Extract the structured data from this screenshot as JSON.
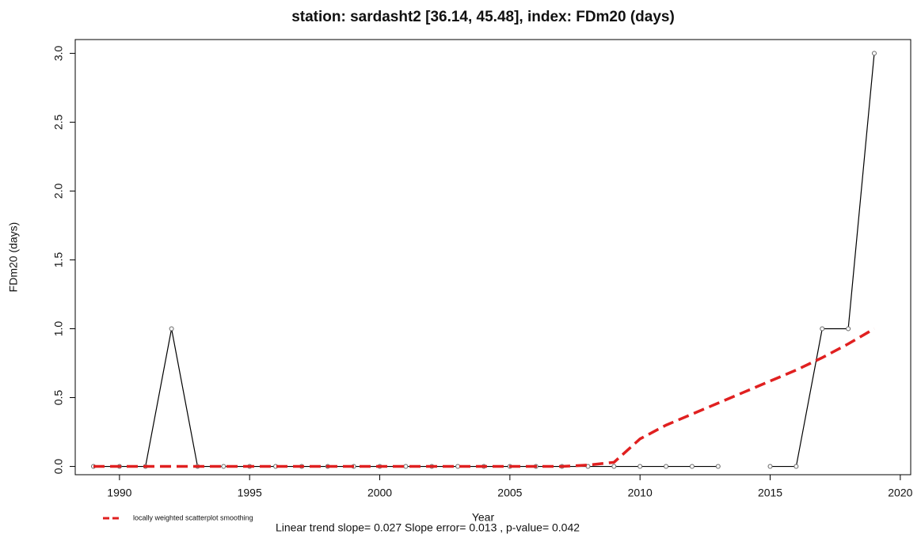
{
  "chart_data": {
    "type": "line",
    "title": "station: sardasht2 [36.14, 45.48], index: FDm20 (days)",
    "x_label": "Year",
    "y_label": "FDm20 (days)",
    "annotation": "Linear trend slope= 0.027    Slope error= 0.013 ,   p-value= 0.042",
    "x": [
      1989,
      1990,
      1991,
      1992,
      1993,
      1994,
      1995,
      1996,
      1997,
      1998,
      1999,
      2000,
      2001,
      2002,
      2003,
      2004,
      2005,
      2006,
      2007,
      2008,
      2009,
      2010,
      2011,
      2012,
      2013,
      2014,
      2015,
      2016,
      2017,
      2018,
      2019
    ],
    "series": [
      {
        "color": "#000000",
        "values": [
          0,
          0,
          0,
          1,
          0,
          0,
          0,
          0,
          0,
          0,
          0,
          0,
          0,
          0,
          0,
          0,
          0,
          0,
          0,
          0,
          0,
          0,
          0,
          0,
          0,
          null,
          0,
          0,
          1,
          1,
          3
        ]
      },
      {
        "name": "locally weighted scatterplot smoothing",
        "color": "#e02020",
        "dashed": true,
        "values": [
          0,
          0,
          0,
          0,
          0,
          0,
          0,
          0,
          0,
          0,
          0,
          0,
          0,
          0,
          0,
          0,
          0,
          0,
          0,
          0.01,
          0.03,
          0.2,
          0.3,
          0.38,
          0.46,
          0.54,
          0.62,
          0.7,
          0.79,
          0.89,
          1.0
        ]
      }
    ],
    "xlim": [
      1988.3,
      2020.4
    ],
    "ylim": [
      -0.06,
      3.1
    ],
    "xticks": [
      1990,
      1995,
      2000,
      2005,
      2010,
      2015,
      2020
    ],
    "yticks": [
      {
        "value": 0,
        "label": "0.0"
      },
      0.5,
      {
        "value": 1,
        "label": "1.0"
      },
      1.5,
      {
        "value": 2,
        "label": "2.0"
      },
      2.5,
      {
        "value": 3,
        "label": "3.0"
      }
    ]
  }
}
